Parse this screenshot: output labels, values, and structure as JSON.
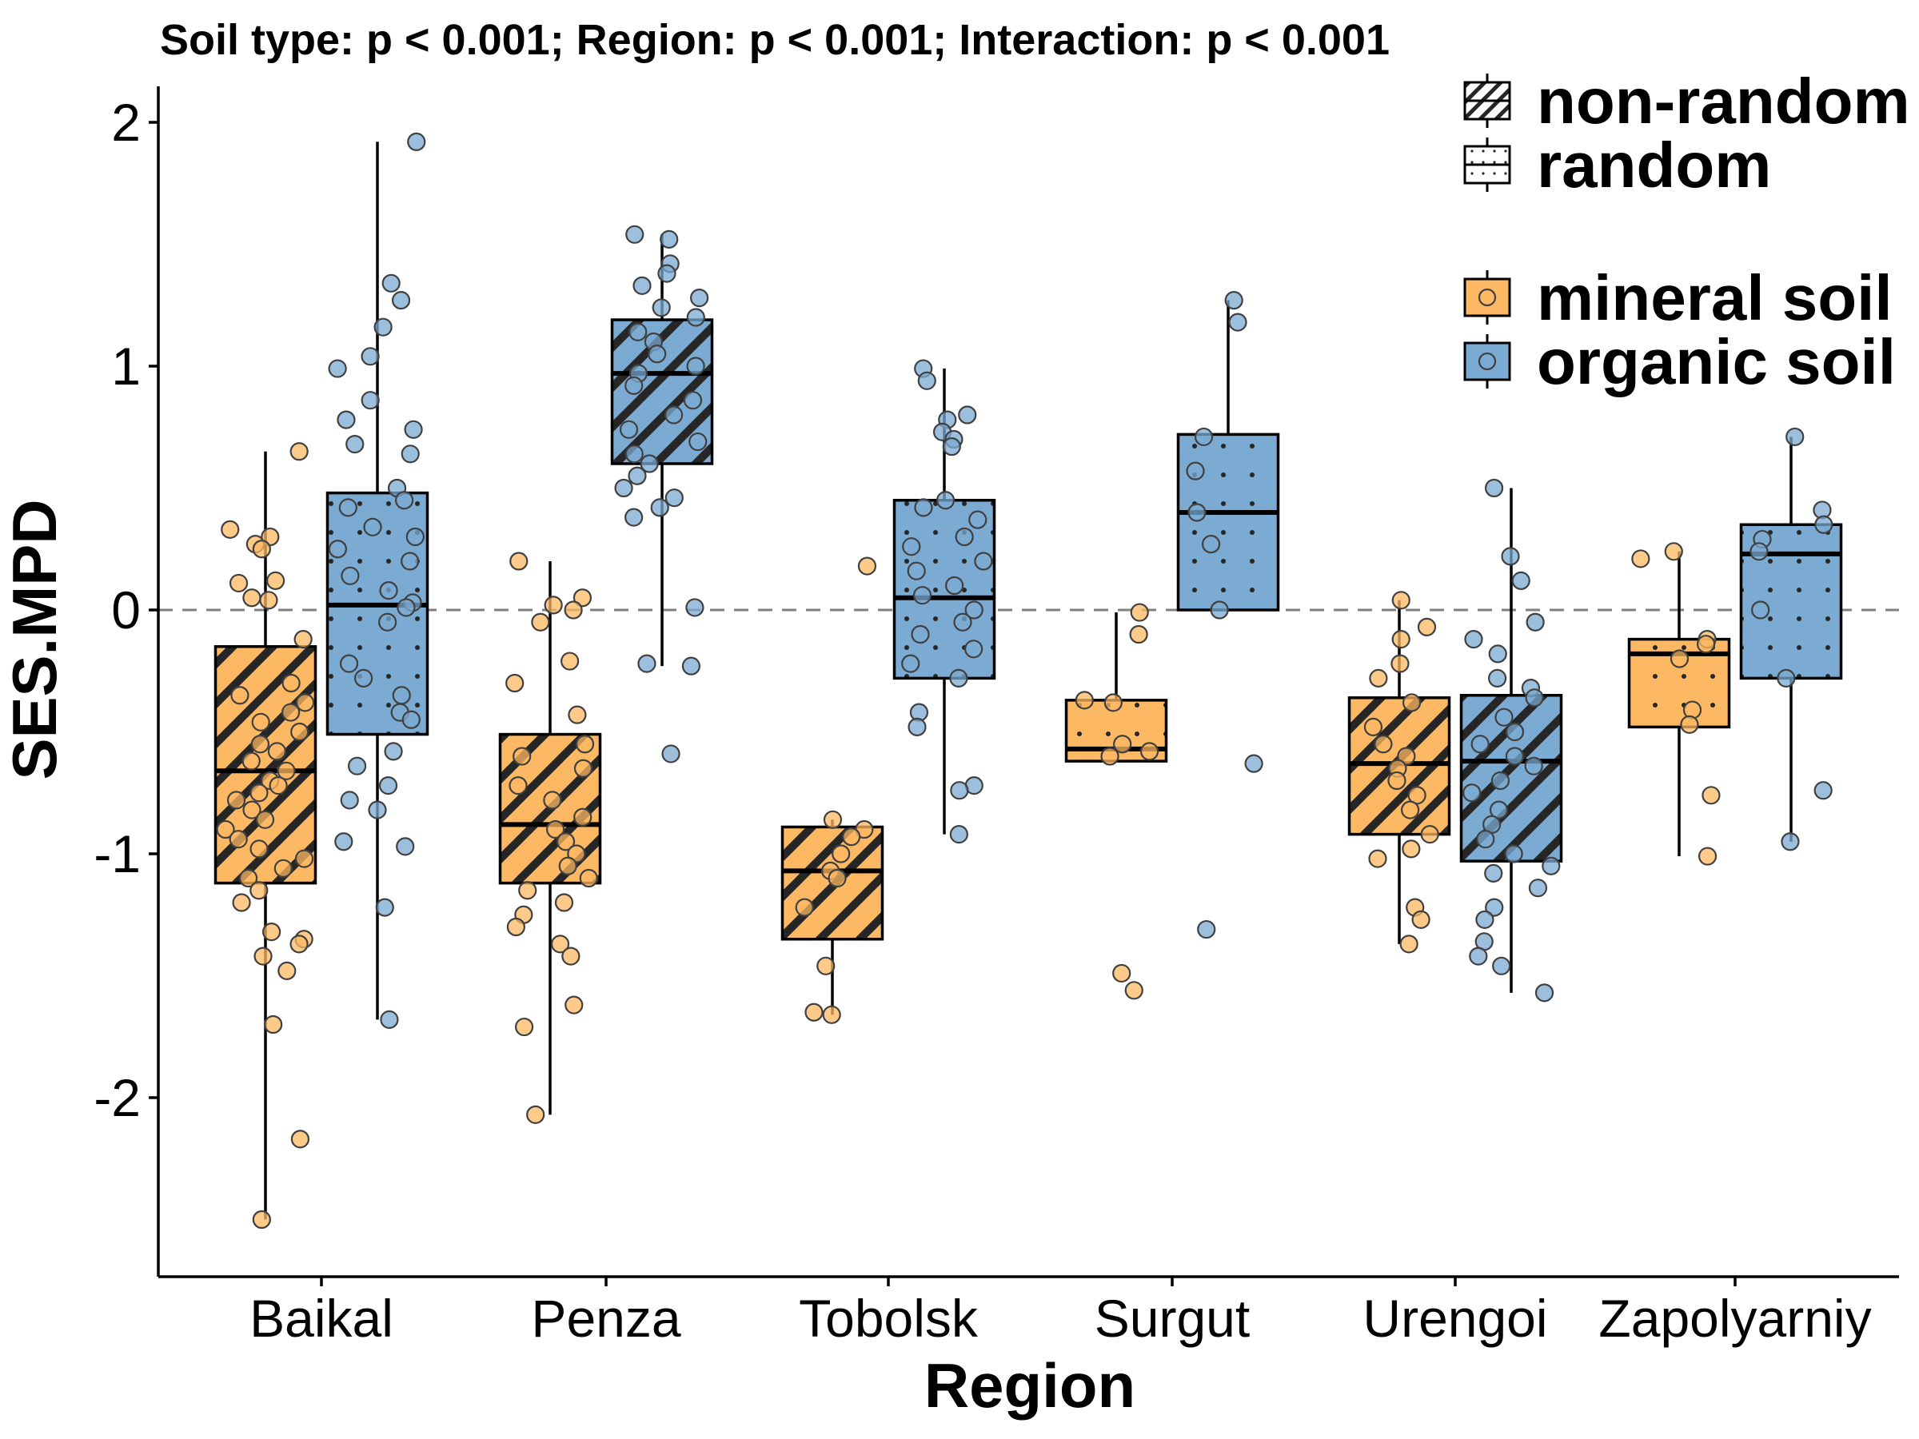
{
  "chart_data": {
    "type": "box",
    "title": "Soil type: p < 0.001; Region: p < 0.001; Interaction: p < 0.001",
    "xlabel": "Region",
    "ylabel": "SES.MPD",
    "ylim": [
      -2.7,
      2.1
    ],
    "yticks": [
      -2,
      -1,
      0,
      1,
      2
    ],
    "ytick_labels": [
      "-2",
      "-1",
      "0",
      "1",
      "2"
    ],
    "reference_line": 0,
    "grid": false,
    "legend_position": "top-right",
    "categories": [
      "Baikal",
      "Penza",
      "Tobolsk",
      "Surgut",
      "Urengoi",
      "Zapolyarniy"
    ],
    "colors": {
      "mineral soil": "#fdb863",
      "organic soil": "#7baad2",
      "outline": "#1a1a1a",
      "reference_line": "#808080"
    },
    "legend": {
      "pattern": [
        {
          "label": "non-random",
          "pattern": "stripe"
        },
        {
          "label": "random",
          "pattern": "dot"
        }
      ],
      "fill": [
        {
          "label": "mineral soil",
          "color": "#fdb863"
        },
        {
          "label": "organic soil",
          "color": "#7baad2"
        }
      ]
    },
    "series": [
      {
        "name": "mineral soil",
        "color": "#fdb863",
        "boxes": [
          {
            "region": "Baikal",
            "pattern": "stripe",
            "whisker_low": -2.5,
            "q1": -1.12,
            "median": -0.66,
            "q3": -0.15,
            "whisker_high": 0.65,
            "points": [
              0.65,
              0.33,
              0.3,
              0.27,
              0.25,
              0.12,
              0.11,
              0.05,
              0.04,
              -0.12,
              -0.3,
              -0.35,
              -0.38,
              -0.42,
              -0.46,
              -0.5,
              -0.55,
              -0.58,
              -0.62,
              -0.66,
              -0.7,
              -0.72,
              -0.75,
              -0.78,
              -0.82,
              -0.86,
              -0.9,
              -0.94,
              -0.98,
              -1.02,
              -1.06,
              -1.1,
              -1.15,
              -1.2,
              -1.32,
              -1.35,
              -1.37,
              -1.42,
              -1.48,
              -1.7,
              -2.17,
              -2.5
            ],
            "outliers": []
          },
          {
            "region": "Penza",
            "pattern": "stripe",
            "whisker_low": -2.07,
            "q1": -1.12,
            "median": -0.88,
            "q3": -0.51,
            "whisker_high": 0.2,
            "points": [
              0.2,
              0.05,
              0.02,
              0.0,
              -0.05,
              -0.21,
              -0.3,
              -0.43,
              -0.55,
              -0.6,
              -0.65,
              -0.72,
              -0.78,
              -0.85,
              -0.9,
              -0.95,
              -1.0,
              -1.05,
              -1.1,
              -1.15,
              -1.2,
              -1.25,
              -1.3,
              -1.37,
              -1.42,
              -1.62,
              -1.71,
              -2.07
            ],
            "outliers": []
          },
          {
            "region": "Tobolsk",
            "pattern": "stripe",
            "whisker_low": -1.66,
            "q1": -1.35,
            "median": -1.07,
            "q3": -0.89,
            "whisker_high": -0.86,
            "points": [
              -0.86,
              -0.9,
              -0.93,
              -1.0,
              -1.07,
              -1.1,
              -1.22,
              -1.46,
              -1.65,
              -1.66
            ],
            "outliers": [
              0.18
            ]
          },
          {
            "region": "Surgut",
            "pattern": "random",
            "whisker_low": -0.62,
            "q1": -0.62,
            "median": -0.57,
            "q3": -0.37,
            "whisker_high": -0.01,
            "points": [
              -0.01,
              -0.1,
              -0.37,
              -0.38,
              -0.55,
              -0.58,
              -0.6
            ],
            "outliers": [
              -1.49,
              -1.56
            ]
          },
          {
            "region": "Urengoi",
            "pattern": "stripe",
            "whisker_low": -1.37,
            "q1": -0.92,
            "median": -0.63,
            "q3": -0.36,
            "whisker_high": 0.04,
            "points": [
              0.04,
              -0.07,
              -0.12,
              -0.22,
              -0.28,
              -0.38,
              -0.48,
              -0.55,
              -0.6,
              -0.65,
              -0.7,
              -0.76,
              -0.82,
              -0.92,
              -0.98,
              -1.02,
              -1.22,
              -1.27,
              -1.37
            ],
            "outliers": []
          },
          {
            "region": "Zapolyarniy",
            "pattern": "random",
            "whisker_low": -1.01,
            "q1": -0.48,
            "median": -0.18,
            "q3": -0.12,
            "whisker_high": 0.24,
            "points": [
              0.24,
              0.21,
              -0.12,
              -0.14,
              -0.2,
              -0.41,
              -0.47,
              -0.76,
              -1.01
            ],
            "outliers": []
          }
        ]
      },
      {
        "name": "organic soil",
        "color": "#7baad2",
        "boxes": [
          {
            "region": "Baikal",
            "pattern": "random",
            "whisker_low": -1.68,
            "q1": -0.51,
            "median": 0.02,
            "q3": 0.48,
            "whisker_high": 1.92,
            "points": [
              1.92,
              1.34,
              1.27,
              1.16,
              1.04,
              0.99,
              0.86,
              0.78,
              0.74,
              0.68,
              0.64,
              0.5,
              0.45,
              0.42,
              0.34,
              0.3,
              0.25,
              0.2,
              0.14,
              0.08,
              0.03,
              0.01,
              -0.05,
              -0.22,
              -0.28,
              -0.35,
              -0.42,
              -0.45,
              -0.58,
              -0.64,
              -0.72,
              -0.78,
              -0.82,
              -0.95,
              -0.97,
              -1.22,
              -1.68
            ],
            "outliers": []
          },
          {
            "region": "Penza",
            "pattern": "stripe",
            "whisker_low": -0.23,
            "q1": 0.6,
            "median": 0.97,
            "q3": 1.19,
            "whisker_high": 1.54,
            "points": [
              1.54,
              1.52,
              1.42,
              1.38,
              1.33,
              1.28,
              1.24,
              1.2,
              1.14,
              1.1,
              1.05,
              1.0,
              0.97,
              0.92,
              0.86,
              0.8,
              0.74,
              0.69,
              0.64,
              0.6,
              0.55,
              0.5,
              0.46,
              0.42,
              0.38,
              0.01,
              -0.22,
              -0.23
            ],
            "outliers": [
              -0.59
            ]
          },
          {
            "region": "Tobolsk",
            "pattern": "random",
            "whisker_low": -0.92,
            "q1": -0.28,
            "median": 0.05,
            "q3": 0.45,
            "whisker_high": 0.99,
            "points": [
              0.99,
              0.94,
              0.8,
              0.78,
              0.73,
              0.7,
              0.67,
              0.45,
              0.42,
              0.37,
              0.3,
              0.26,
              0.2,
              0.16,
              0.1,
              0.06,
              0.0,
              -0.05,
              -0.1,
              -0.16,
              -0.22,
              -0.28,
              -0.42,
              -0.48,
              -0.72,
              -0.74,
              -0.92
            ],
            "outliers": []
          },
          {
            "region": "Surgut",
            "pattern": "random",
            "whisker_low": 0.0,
            "q1": 0.0,
            "median": 0.4,
            "q3": 0.72,
            "whisker_high": 1.27,
            "points": [
              1.27,
              1.18,
              0.71,
              0.57,
              0.4,
              0.27,
              0.0
            ],
            "outliers": [
              -0.63,
              -1.31
            ]
          },
          {
            "region": "Urengoi",
            "pattern": "stripe",
            "whisker_low": -1.57,
            "q1": -1.03,
            "median": -0.62,
            "q3": -0.35,
            "whisker_high": 0.5,
            "points": [
              0.5,
              0.22,
              0.12,
              -0.05,
              -0.12,
              -0.18,
              -0.28,
              -0.32,
              -0.36,
              -0.44,
              -0.5,
              -0.55,
              -0.6,
              -0.64,
              -0.7,
              -0.75,
              -0.82,
              -0.88,
              -0.94,
              -1.0,
              -1.05,
              -1.08,
              -1.14,
              -1.22,
              -1.27,
              -1.36,
              -1.42,
              -1.46,
              -1.57
            ],
            "outliers": []
          },
          {
            "region": "Zapolyarniy",
            "pattern": "random",
            "whisker_low": -0.95,
            "q1": -0.28,
            "median": 0.23,
            "q3": 0.35,
            "whisker_high": 0.71,
            "points": [
              0.71,
              0.41,
              0.35,
              0.29,
              0.24,
              0.0,
              -0.28,
              -0.74,
              -0.95
            ],
            "outliers": []
          }
        ]
      }
    ]
  }
}
